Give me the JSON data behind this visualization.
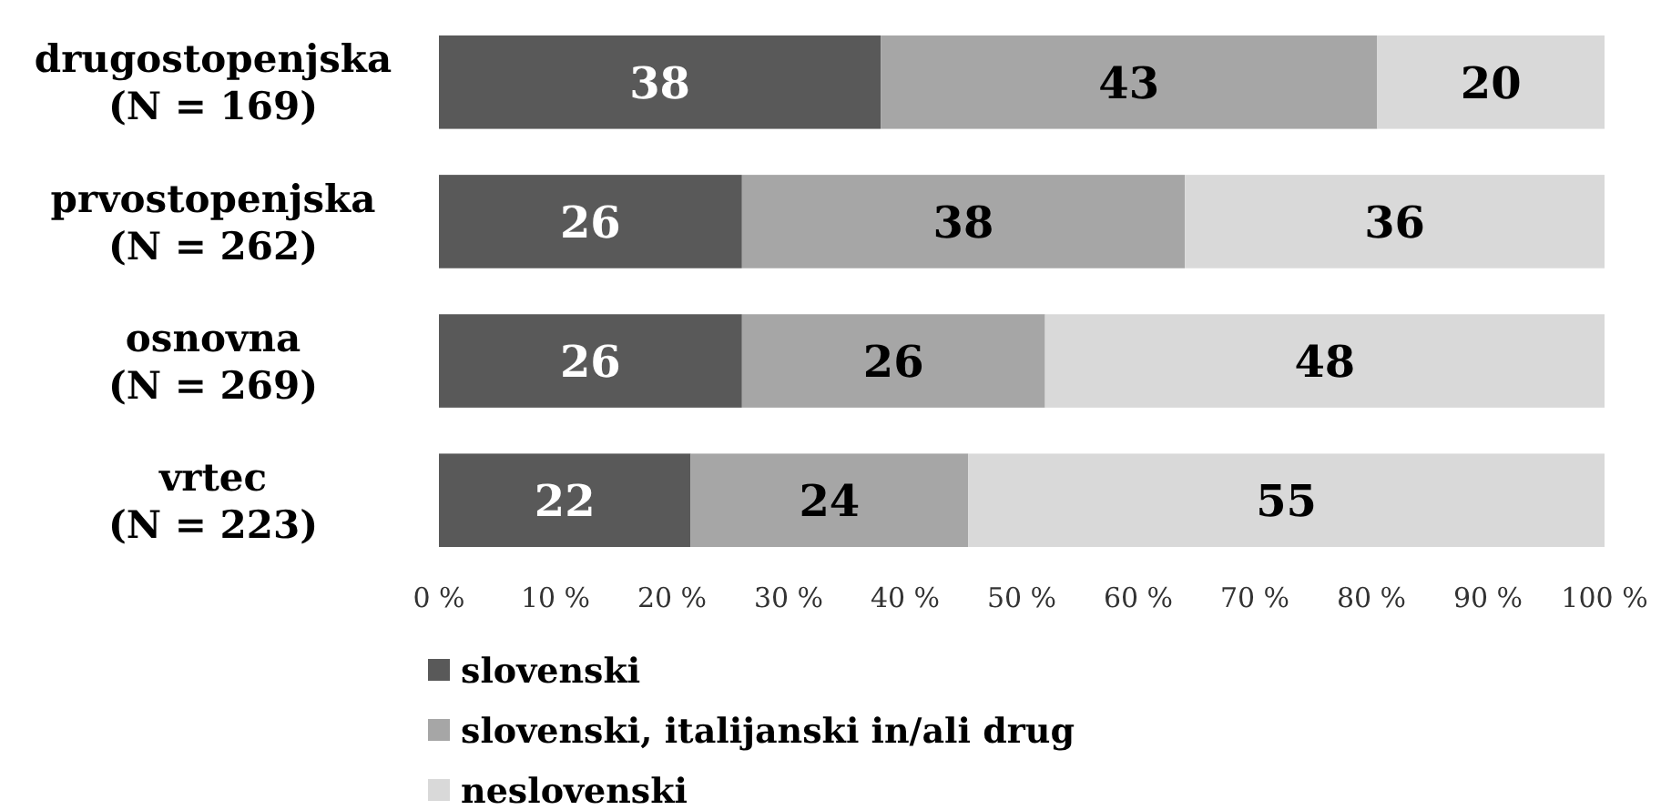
{
  "chart_data": {
    "type": "bar",
    "orientation": "horizontal",
    "stacked": true,
    "categories": [
      "drugostopenjska\n(N = 169)",
      "prvostopenjska\n(N = 262)",
      "osnovna\n(N = 269)",
      "vrtec\n(N = 223)"
    ],
    "series": [
      {
        "name": "slovenski",
        "color": "#595959",
        "values": [
          37.9,
          26,
          26,
          21.6
        ],
        "value_labels": [
          "38",
          "26",
          "26",
          "22"
        ]
      },
      {
        "name": "slovenski, italijanski in/ali drug",
        "color": "#a6a6a6",
        "values": [
          42.6,
          38,
          26,
          23.8
        ],
        "value_labels": [
          "43",
          "38",
          "26",
          "24"
        ]
      },
      {
        "name": "neslovenski",
        "color": "#d9d9d9",
        "values": [
          19.5,
          36,
          48,
          54.6
        ],
        "value_labels": [
          "20",
          "36",
          "48",
          "55"
        ]
      }
    ],
    "xlim": [
      0,
      100
    ],
    "xticks": [
      {
        "value": 0,
        "label": "0 %"
      },
      {
        "value": 10,
        "label": "10 %"
      },
      {
        "value": 20,
        "label": "20 %"
      },
      {
        "value": 30,
        "label": "30 %"
      },
      {
        "value": 40,
        "label": "40 %"
      },
      {
        "value": 50,
        "label": "50 %"
      },
      {
        "value": 60,
        "label": "60 %"
      },
      {
        "value": 70,
        "label": "70 %"
      },
      {
        "value": 80,
        "label": "80 %"
      },
      {
        "value": 90,
        "label": "90 %"
      },
      {
        "value": 100,
        "label": "100 %"
      }
    ],
    "grid": false,
    "legend": "bottom"
  }
}
